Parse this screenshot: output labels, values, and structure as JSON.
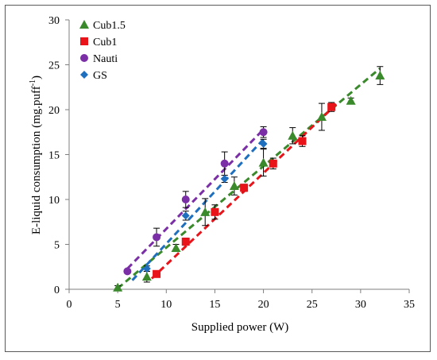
{
  "chart_data": {
    "type": "scatter",
    "title": "",
    "xlabel": "Supplied power (W)",
    "ylabel": "E-liquid consumption (mg.puff",
    "ylabel_sup": "-1",
    "ylabel_close": ")",
    "xlim": [
      0,
      35
    ],
    "ylim": [
      0,
      30
    ],
    "xticks": [
      0,
      5,
      10,
      15,
      20,
      25,
      30,
      35
    ],
    "yticks": [
      0,
      5,
      10,
      15,
      20,
      25,
      30
    ],
    "grid": false,
    "legend_position": "top-left",
    "series": [
      {
        "name": "Cub1.5",
        "marker": "triangle",
        "color": "#3a8a2c",
        "x": [
          5,
          8,
          11,
          14,
          17,
          20,
          23,
          26,
          29,
          32
        ],
        "y": [
          0.2,
          1.4,
          4.6,
          8.6,
          11.5,
          14.1,
          17.1,
          19.2,
          21.0,
          23.8
        ],
        "err": [
          0.2,
          0.6,
          0.4,
          1.5,
          1.0,
          1.5,
          0.9,
          1.5,
          0.3,
          1.0
        ],
        "trend": {
          "x0": 5,
          "y0": 0.1,
          "x1": 32,
          "y1": 24.6
        }
      },
      {
        "name": "Cub1",
        "marker": "square",
        "color": "#e8141a",
        "x": [
          9,
          12,
          15,
          18,
          21,
          24,
          27
        ],
        "y": [
          1.7,
          5.3,
          8.6,
          11.3,
          14.0,
          16.5,
          20.3
        ],
        "err": [
          0.3,
          0.4,
          0.8,
          0.4,
          0.6,
          0.6,
          0.5
        ],
        "trend": {
          "x0": 8.5,
          "y0": 1.2,
          "x1": 27.5,
          "y1": 20.6
        }
      },
      {
        "name": "Nauti",
        "marker": "circle",
        "color": "#7b2fa6",
        "x": [
          6,
          9,
          12,
          16,
          20
        ],
        "y": [
          2.0,
          5.8,
          10.0,
          14.0,
          17.5
        ],
        "err": [
          0.2,
          1.0,
          0.9,
          1.3,
          0.6
        ],
        "trend": {
          "x0": 6,
          "y0": 2.3,
          "x1": 20,
          "y1": 17.8
        }
      },
      {
        "name": "GS",
        "marker": "diamond",
        "color": "#1f6fbf",
        "x": [
          8,
          12,
          16,
          20
        ],
        "y": [
          2.3,
          8.2,
          12.3,
          16.2
        ],
        "err": [
          0.3,
          0.5,
          0.4,
          0.5
        ],
        "trend": {
          "x0": 6.5,
          "y0": 1.0,
          "x1": 20,
          "y1": 16.7
        }
      }
    ]
  }
}
